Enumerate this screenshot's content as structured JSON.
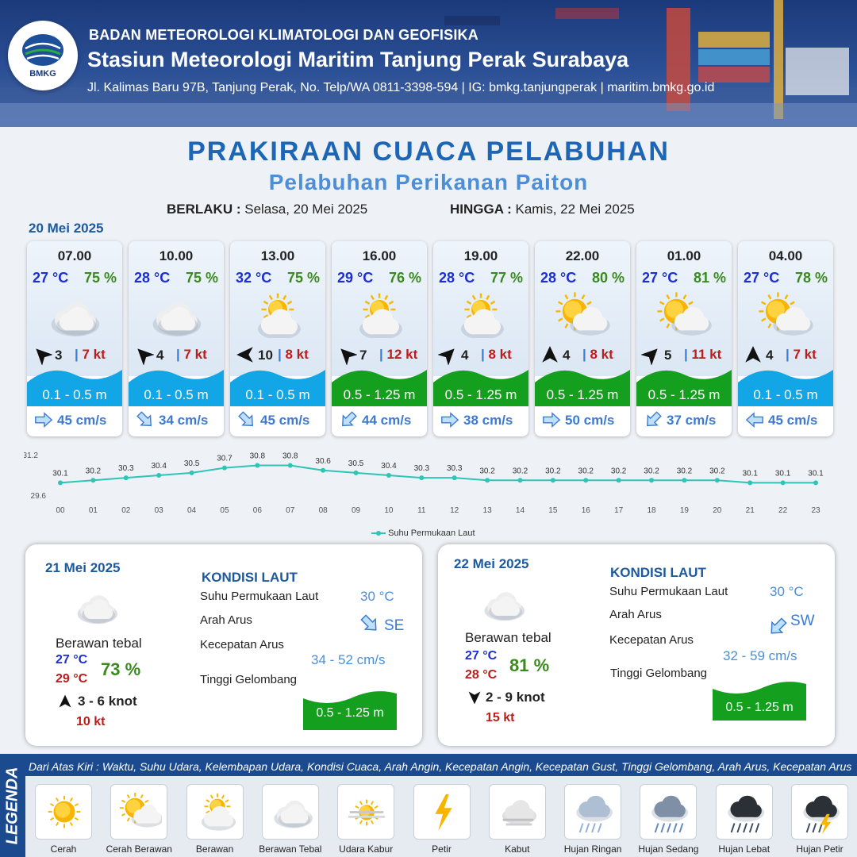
{
  "header": {
    "logo_text": "BMKG",
    "agency": "BADAN METEOROLOGI KLIMATOLOGI DAN GEOFISIKA",
    "station": "Stasiun Meteorologi Maritim Tanjung Perak Surabaya",
    "address": "Jl. Kalimas Baru 97B, Tanjung Perak, No. Telp/WA 0811-3398-594 | IG: bmkg.tanjungperak | maritim.bmkg.go.id"
  },
  "title": "PRAKIRAAN CUACA PELABUHAN",
  "subtitle": "Pelabuhan Perikanan Paiton",
  "validity": {
    "from_label": "BERLAKU :",
    "from_value": "Selasa, 20 Mei 2025",
    "to_label": "HINGGA :",
    "to_value": "Kamis, 22 Mei 2025"
  },
  "day1_label": "20 Mei 2025",
  "forecasts": [
    {
      "time": "07.00",
      "temp": "27 °C",
      "hum": "75 %",
      "icon": "berawan-tebal",
      "wind_dir": 315,
      "wind": "3",
      "gust": "7 kt",
      "wave": "0.1 - 0.5 m",
      "wave_class": "low",
      "cur_dir": 90,
      "cur": "45 cm/s"
    },
    {
      "time": "10.00",
      "temp": "28 °C",
      "hum": "75 %",
      "icon": "berawan-tebal",
      "wind_dir": 315,
      "wind": "4",
      "gust": "7 kt",
      "wave": "0.1 - 0.5 m",
      "wave_class": "low",
      "cur_dir": 135,
      "cur": "34 cm/s"
    },
    {
      "time": "13.00",
      "temp": "32 °C",
      "hum": "75 %",
      "icon": "berawan",
      "wind_dir": 270,
      "wind": "10",
      "gust": "8 kt",
      "wave": "0.1 - 0.5 m",
      "wave_class": "low",
      "cur_dir": 135,
      "cur": "45 cm/s"
    },
    {
      "time": "16.00",
      "temp": "29 °C",
      "hum": "76 %",
      "icon": "berawan",
      "wind_dir": 315,
      "wind": "7",
      "gust": "12 kt",
      "wave": "0.5 - 1.25 m",
      "wave_class": "mid",
      "cur_dir": 225,
      "cur": "44 cm/s"
    },
    {
      "time": "19.00",
      "temp": "28 °C",
      "hum": "77 %",
      "icon": "berawan",
      "wind_dir": 45,
      "wind": "4",
      "gust": "8 kt",
      "wave": "0.5 - 1.25 m",
      "wave_class": "mid",
      "cur_dir": 90,
      "cur": "38 cm/s"
    },
    {
      "time": "22.00",
      "temp": "28 °C",
      "hum": "80 %",
      "icon": "cerah-berawan",
      "wind_dir": 0,
      "wind": "4",
      "gust": "8 kt",
      "wave": "0.5 - 1.25 m",
      "wave_class": "mid",
      "cur_dir": 90,
      "cur": "50 cm/s"
    },
    {
      "time": "01.00",
      "temp": "27 °C",
      "hum": "81 %",
      "icon": "cerah-berawan",
      "wind_dir": 45,
      "wind": "5",
      "gust": "11 kt",
      "wave": "0.5 - 1.25 m",
      "wave_class": "mid",
      "cur_dir": 225,
      "cur": "37 cm/s"
    },
    {
      "time": "04.00",
      "temp": "27 °C",
      "hum": "78 %",
      "icon": "cerah-berawan",
      "wind_dir": 0,
      "wind": "4",
      "gust": "7 kt",
      "wave": "0.1 - 0.5 m",
      "wave_class": "low",
      "cur_dir": 270,
      "cur": "45 cm/s"
    }
  ],
  "chart_data": {
    "type": "line",
    "x": [
      "00",
      "01",
      "02",
      "03",
      "04",
      "05",
      "06",
      "07",
      "08",
      "09",
      "10",
      "11",
      "12",
      "13",
      "14",
      "15",
      "16",
      "17",
      "18",
      "19",
      "20",
      "21",
      "22",
      "23"
    ],
    "series": [
      {
        "name": "Suhu Permukaan Laut",
        "values": [
          30.1,
          30.2,
          30.3,
          30.4,
          30.5,
          30.7,
          30.8,
          30.8,
          30.6,
          30.5,
          30.4,
          30.3,
          30.3,
          30.2,
          30.2,
          30.2,
          30.2,
          30.2,
          30.2,
          30.2,
          30.2,
          30.1,
          30.1,
          30.1
        ]
      }
    ],
    "y_ticks": [
      "31.2",
      "29.6"
    ],
    "ylim": [
      29.6,
      31.2
    ],
    "legend": "bottom-center",
    "color": "#2ec4b6"
  },
  "days": [
    {
      "date": "21 Mei 2025",
      "icon": "berawan-tebal",
      "cond": "Berawan tebal",
      "tmin": "27 °C",
      "tmax": "29 °C",
      "hum": "73 %",
      "wind_dir": 0,
      "wind": "3  - 6 knot",
      "gust": "10 kt",
      "head": "KONDISI LAUT",
      "sst_label": "Suhu Permukaan Laut",
      "sst": "30 °C",
      "arus_label": "Arah Arus",
      "arus_dir": "SE",
      "arus_deg": 135,
      "kec_label": "Kecepatan Arus",
      "kec": "34  - 52 cm/s",
      "tg_label": "Tinggi Gelombang",
      "tg": "0.5 - 1.25 m"
    },
    {
      "date": "22 Mei 2025",
      "icon": "berawan-tebal",
      "cond": "Berawan tebal",
      "tmin": "27 °C",
      "tmax": "28 °C",
      "hum": "81 %",
      "wind_dir": 180,
      "wind": "2  - 9 knot",
      "gust": "15 kt",
      "head": "KONDISI LAUT",
      "sst_label": "Suhu Permukaan Laut",
      "sst": "30 °C",
      "arus_label": "Arah Arus",
      "arus_dir": "SW",
      "arus_deg": 225,
      "kec_label": "Kecepatan Arus",
      "kec": "32  - 59 cm/s",
      "tg_label": "Tinggi Gelombang",
      "tg": "0.5 - 1.25 m"
    }
  ],
  "legend": {
    "title": "LEGENDA",
    "description": "Dari Atas Kiri : Waktu, Suhu Udara, Kelembapan Udara, Kondisi Cuaca, Arah Angin, Kecepatan Angin, Kecepatan Gust, Tinggi Gelombang, Arah Arus, Kecepatan Arus",
    "items": [
      {
        "label": "Cerah",
        "icon": "cerah"
      },
      {
        "label": "Cerah Berawan",
        "icon": "cerah-berawan"
      },
      {
        "label": "Berawan",
        "icon": "berawan"
      },
      {
        "label": "Berawan Tebal",
        "icon": "berawan-tebal"
      },
      {
        "label": "Udara Kabur",
        "icon": "udara-kabur"
      },
      {
        "label": "Petir",
        "icon": "petir"
      },
      {
        "label": "Kabut",
        "icon": "kabut"
      },
      {
        "label": "Hujan Ringan",
        "icon": "hujan-ringan"
      },
      {
        "label": "Hujan Sedang",
        "icon": "hujan-sedang"
      },
      {
        "label": "Hujan Lebat",
        "icon": "hujan-lebat"
      },
      {
        "label": "Hujan Petir",
        "icon": "hujan-petir"
      }
    ]
  },
  "colors": {
    "wave_low": "#12a6e6",
    "wave_mid": "#14a01e",
    "temp": "#1c2fd1",
    "humidity": "#3a8a1d",
    "gust": "#c01a1a"
  }
}
